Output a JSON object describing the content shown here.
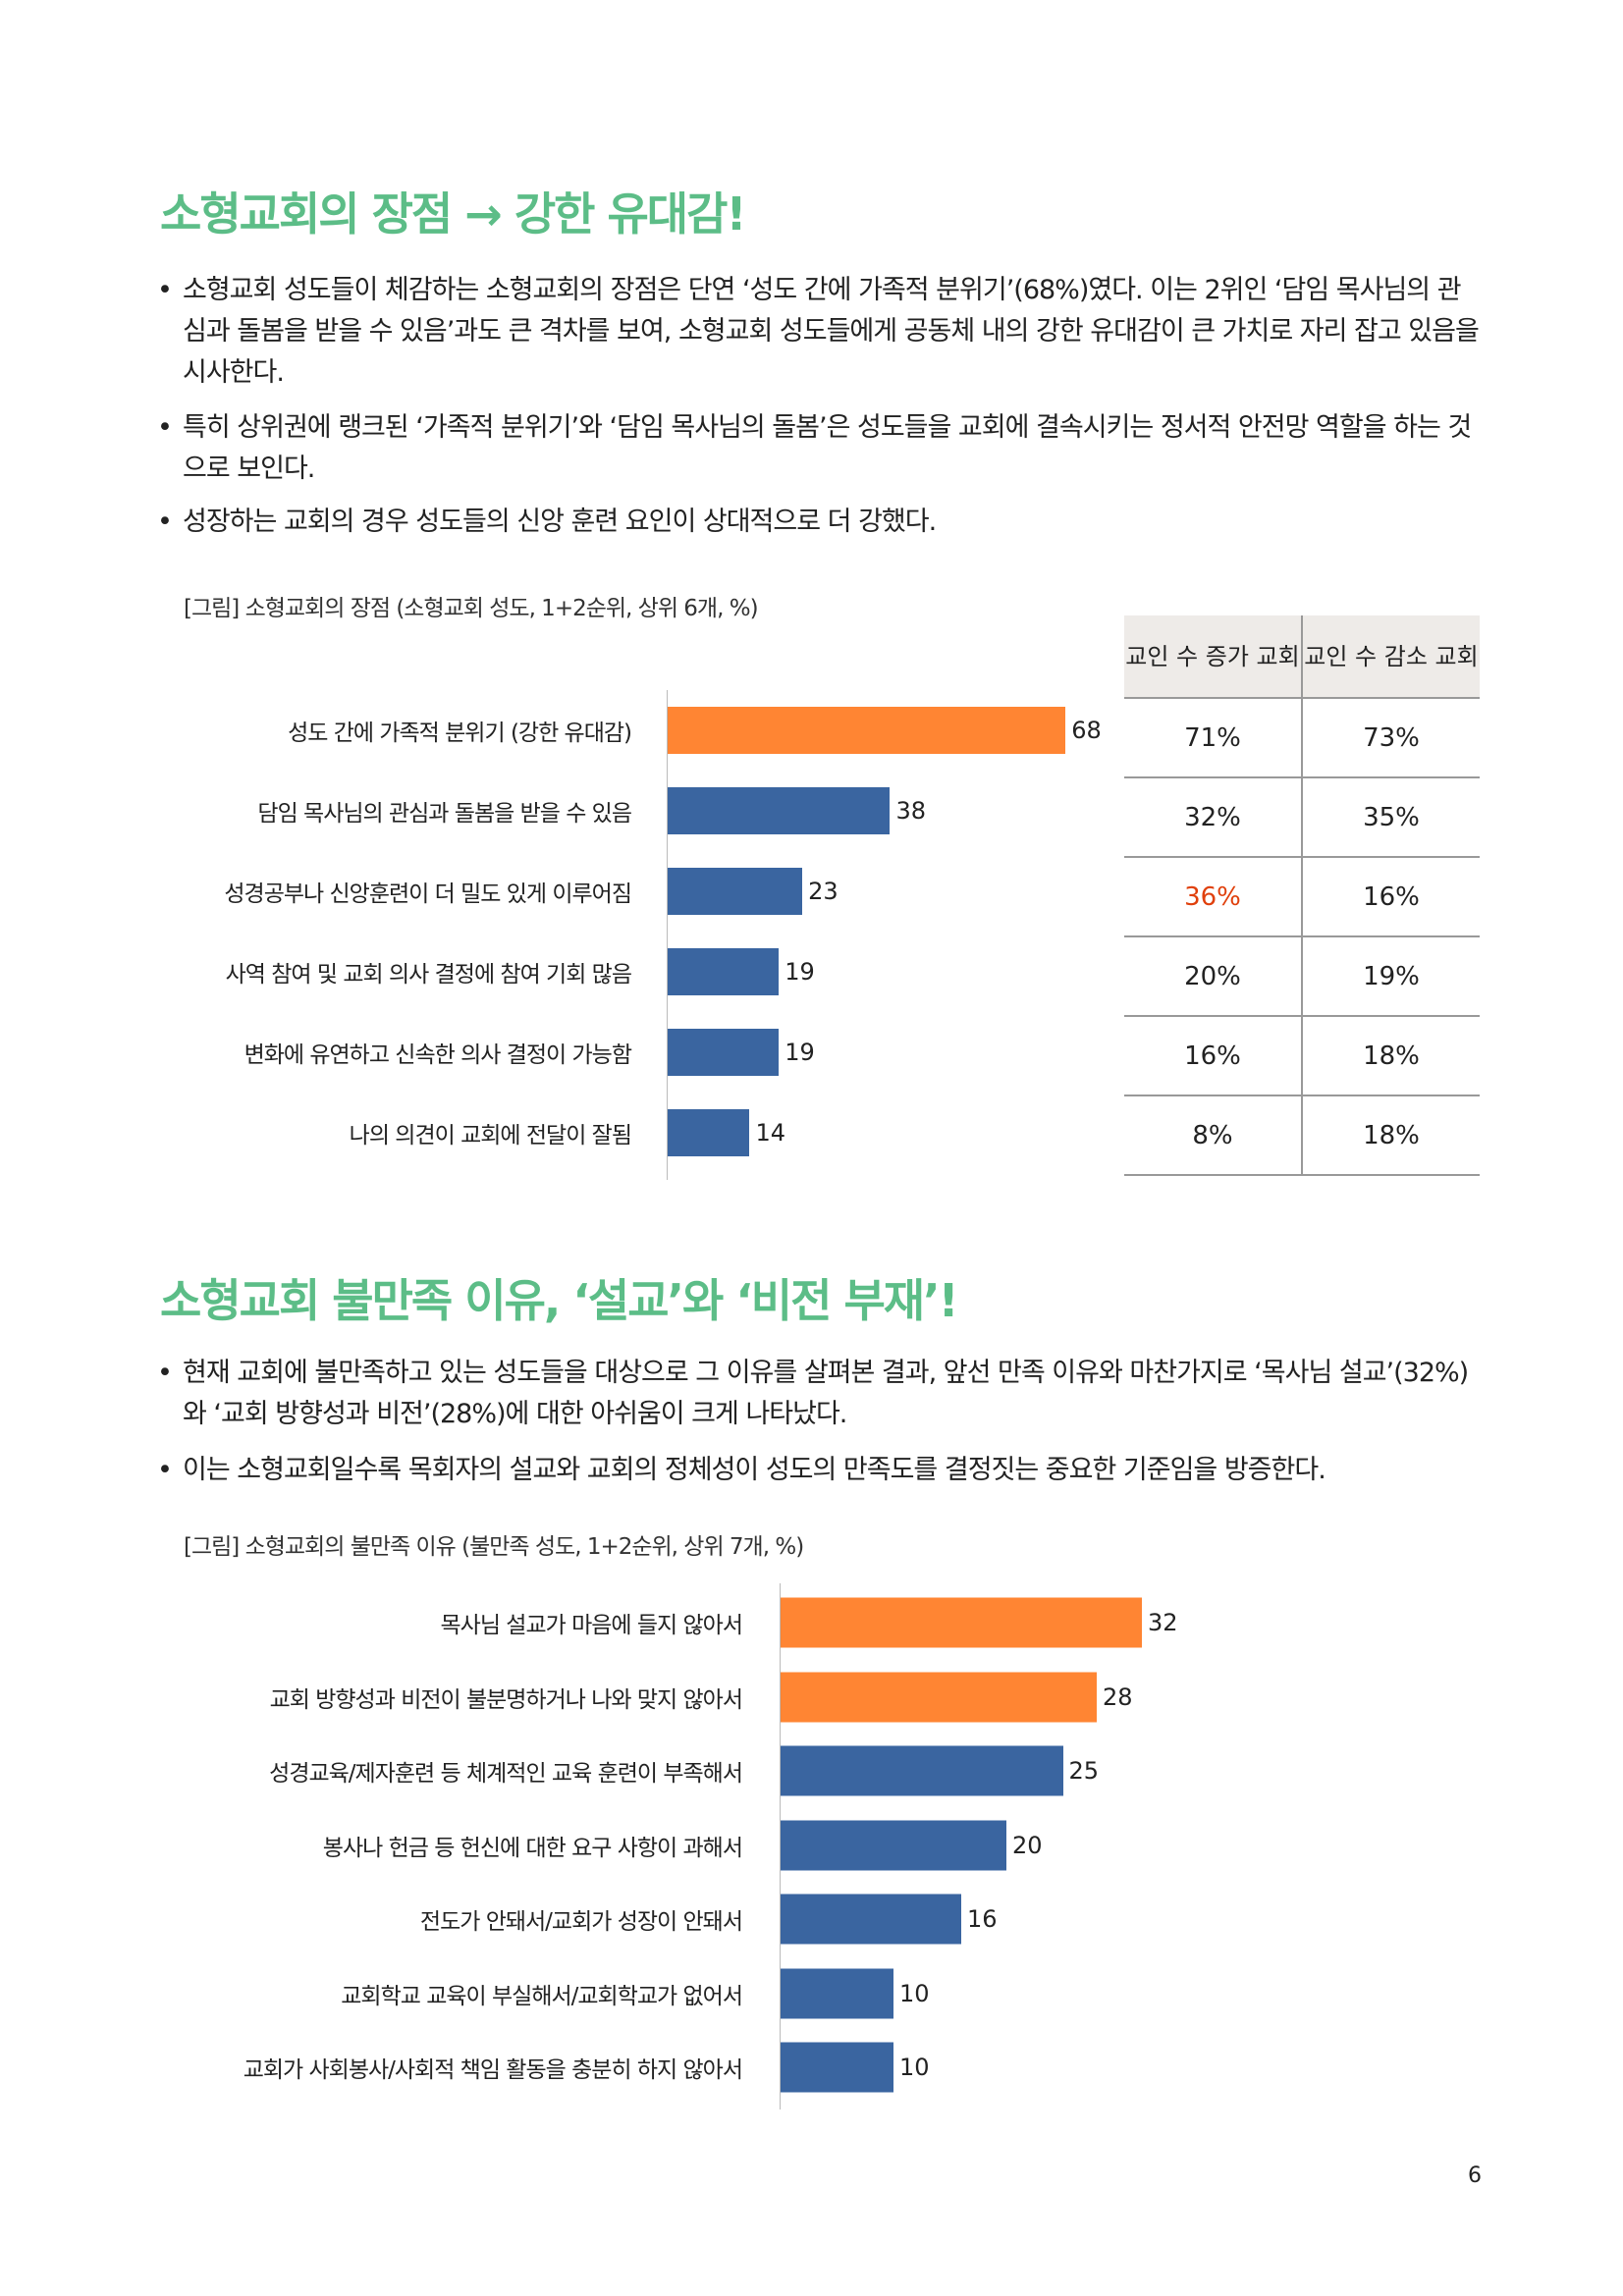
{
  "section1": {
    "title": "소형교회의 장점 → 강한 유대감!",
    "bullets": [
      "소형교회 성도들이 체감하는 소형교회의 장점은 단연 ‘성도 간에 가족적 분위기’(68%)였다. 이는 2위인 ‘담임 목사님의 관심과 돌봄을 받을 수 있음’과도 큰 격차를 보여, 소형교회 성도들에게 공동체 내의 강한 유대감이 큰 가치로 자리 잡고 있음을 시사한다.",
      "특히 상위권에 랭크된 ‘가족적 분위기’와 ‘담임 목사님의 돌봄’은 성도들을 교회에 결속시키는 정서적 안전망 역할을 하는 것으로 보인다.",
      "성장하는 교회의 경우 성도들의 신앙 훈련 요인이 상대적으로 더 강했다."
    ],
    "caption": "[그림] 소형교회의 장점 (소형교회 성도, 1+2순위, 상위 6개, %)",
    "table": {
      "headers": [
        "교인 수 증가 교회",
        "교인 수 감소 교회"
      ],
      "rows": [
        [
          "71%",
          "73%"
        ],
        [
          "32%",
          "35%"
        ],
        [
          "36%",
          "16%"
        ],
        [
          "20%",
          "19%"
        ],
        [
          "16%",
          "18%"
        ],
        [
          "8%",
          "18%"
        ]
      ],
      "highlight_color": "#e0400c"
    }
  },
  "section2": {
    "title": "소형교회 불만족 이유, ‘설교’와 ‘비전 부재’!",
    "bullets": [
      "현재 교회에 불만족하고 있는 성도들을 대상으로 그 이유를 살펴본 결과, 앞선 만족 이유와 마찬가지로 ‘목사님 설교’(32%)와 ‘교회 방향성과 비전’(28%)에 대한 아쉬움이 크게 나타났다.",
      "이는 소형교회일수록 목회자의 설교와 교회의 정체성이 성도의 만족도를 결정짓는 중요한 기준임을 방증한다."
    ],
    "caption": "[그림] 소형교회의 불만족 이유 (불만족 성도, 1+2순위, 상위 7개, %)"
  },
  "chart_data": [
    {
      "type": "bar",
      "orientation": "horizontal",
      "categories": [
        "성도 간에 가족적 분위기 (강한 유대감)",
        "담임 목사님의 관심과 돌봄을 받을 수 있음",
        "성경공부나 신앙훈련이 더 밀도 있게 이루어짐",
        "사역 참여 및 교회 의사 결정에 참여 기회 많음",
        "변화에 유연하고 신속한 의사 결정이 가능함",
        "나의 의견이 교회에 전달이 잘됨"
      ],
      "values": [
        68,
        38,
        23,
        19,
        19,
        14
      ],
      "colors": [
        "#ff8533",
        "#3a65a0",
        "#3a65a0",
        "#3a65a0",
        "#3a65a0",
        "#3a65a0"
      ]
    },
    {
      "type": "bar",
      "orientation": "horizontal",
      "categories": [
        "목사님 설교가 마음에 들지 않아서",
        "교회 방향성과 비전이 불분명하거나 나와 맞지 않아서",
        "성경교육/제자훈련 등 체계적인 교육 훈련이 부족해서",
        "봉사나 헌금 등 헌신에 대한 요구 사항이 과해서",
        "전도가 안돼서/교회가 성장이 안돼서",
        "교회학교 교육이 부실해서/교회학교가 없어서",
        "교회가 사회봉사/사회적 책임 활동을 충분히 하지 않아서"
      ],
      "values": [
        32,
        28,
        25,
        20,
        16,
        10,
        10
      ],
      "colors": [
        "#ff8533",
        "#ff8533",
        "#3a65a0",
        "#3a65a0",
        "#3a65a0",
        "#3a65a0",
        "#3a65a0"
      ]
    }
  ],
  "page_number": "6"
}
